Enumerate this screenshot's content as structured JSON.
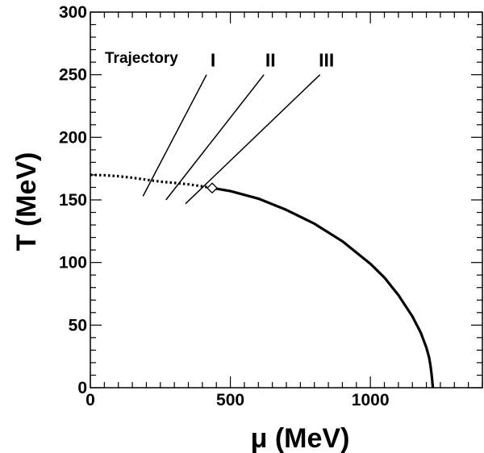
{
  "chart_data": {
    "type": "line",
    "xlabel": "μ (MeV)",
    "ylabel": "T (MeV)",
    "xlim": [
      0,
      1400
    ],
    "ylim": [
      0,
      300
    ],
    "x_ticks": [
      "0",
      "500",
      "1000"
    ],
    "y_ticks": [
      "0",
      "50",
      "100",
      "150",
      "200",
      "250",
      "300"
    ],
    "series": [
      {
        "style": "dotted",
        "x": [
          0,
          50,
          100,
          150,
          200,
          250,
          300,
          350,
          400,
          435
        ],
        "y": [
          170,
          169.7,
          168.9,
          167.7,
          166.1,
          164.6,
          163.6,
          162.4,
          160.8,
          159.5
        ]
      },
      {
        "style": "solid-thick",
        "x": [
          435,
          500,
          600,
          700,
          800,
          900,
          1000,
          1050,
          1100,
          1150,
          1180,
          1200,
          1210,
          1215,
          1220,
          1223
        ],
        "y": [
          159.5,
          157,
          151,
          142,
          131,
          117,
          99,
          88,
          74,
          57,
          44,
          32,
          24,
          17,
          8,
          0
        ]
      }
    ],
    "critical_point": {
      "x": 435,
      "y": 159.5,
      "marker": "diamond"
    },
    "trajectories": [
      {
        "label": "I",
        "x": [
          188,
          415
        ],
        "y": [
          153,
          250
        ]
      },
      {
        "label": "II",
        "x": [
          270,
          620
        ],
        "y": [
          150,
          250
        ]
      },
      {
        "label": "III",
        "x": [
          340,
          820
        ],
        "y": [
          147,
          250
        ]
      }
    ],
    "annotations": {
      "trajectory_label": "Trajectory"
    },
    "colors": {
      "line": "#000000",
      "background": "#ffffff"
    }
  }
}
